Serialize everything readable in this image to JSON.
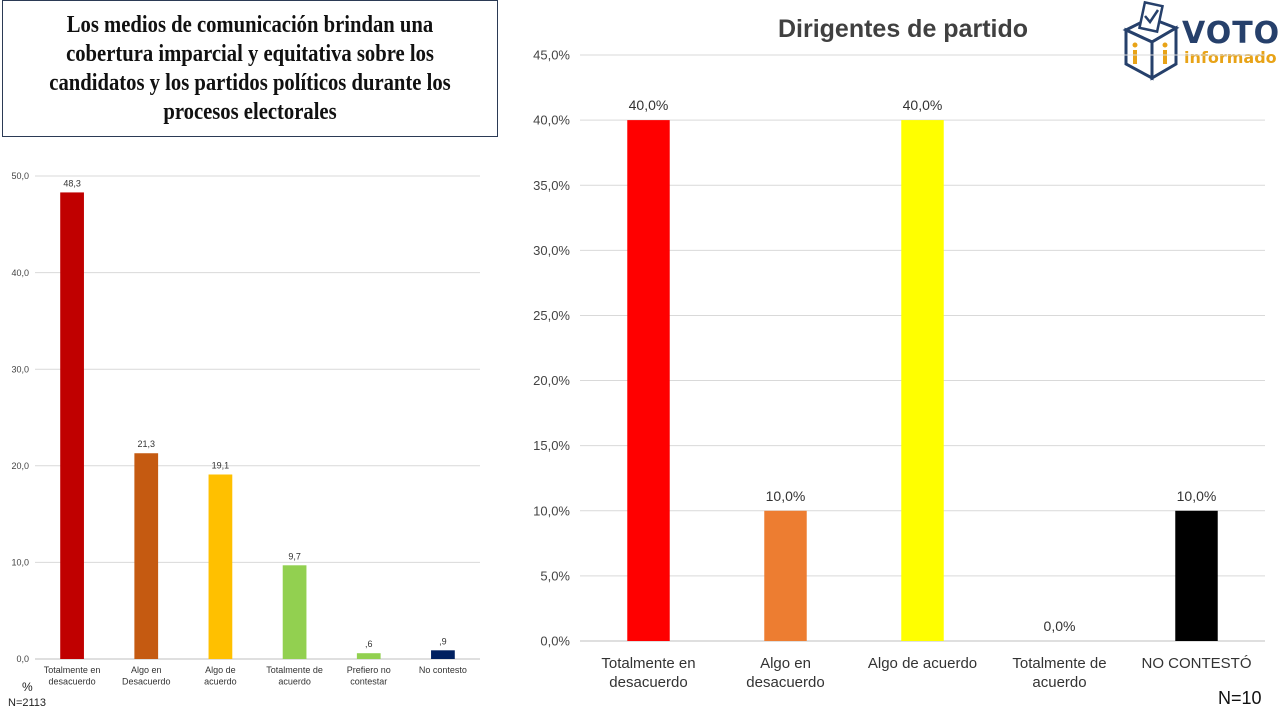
{
  "header": {
    "title": "Los medios de comunicación brindan una cobertura imparcial y equitativa sobre los candidatos y los partidos políticos durante los procesos electorales"
  },
  "logo": {
    "word1": "VOTO",
    "word2": "informado",
    "icon": "ballot-box-icon"
  },
  "footer": {
    "left_n": "N=2113",
    "right_n": "N=10",
    "unit_label": "%"
  },
  "chart_data": [
    {
      "type": "bar",
      "title": "",
      "categories": [
        "Totalmente en desacuerdo",
        "Algo en Desacuerdo",
        "Algo de acuerdo",
        "Totalmente de acuerdo",
        "Prefiero no contestar",
        "No contesto"
      ],
      "values": [
        48.3,
        21.3,
        19.1,
        9.7,
        0.6,
        0.9
      ],
      "data_labels": [
        "48,3",
        "21,3",
        "19,1",
        "9,7",
        ",6",
        ",9"
      ],
      "colors": [
        "#c00000",
        "#c55a11",
        "#ffc000",
        "#92d050",
        "#92d050",
        "#002060"
      ],
      "ylim": [
        0,
        50
      ],
      "yticks": [
        "0,0",
        "10,0",
        "20,0",
        "30,0",
        "40,0",
        "50,0"
      ],
      "grid": true,
      "ylabel": "%"
    },
    {
      "type": "bar",
      "title": "Dirigentes de partido",
      "categories": [
        "Totalmente en desacuerdo",
        "Algo en desacuerdo",
        "Algo de acuerdo",
        "Totalmente de acuerdo",
        "NO CONTESTÓ"
      ],
      "values": [
        40.0,
        10.0,
        40.0,
        0.0,
        10.0
      ],
      "data_labels": [
        "40,0%",
        "10,0%",
        "40,0%",
        "0,0%",
        "10,0%"
      ],
      "colors": [
        "#ff0000",
        "#ed7d31",
        "#ffff00",
        "#a5a5a5",
        "#000000"
      ],
      "ylim": [
        0,
        45
      ],
      "yticks": [
        "0,0%",
        "5,0%",
        "10,0%",
        "15,0%",
        "20,0%",
        "25,0%",
        "30,0%",
        "35,0%",
        "40,0%",
        "45,0%"
      ],
      "grid": true
    }
  ]
}
